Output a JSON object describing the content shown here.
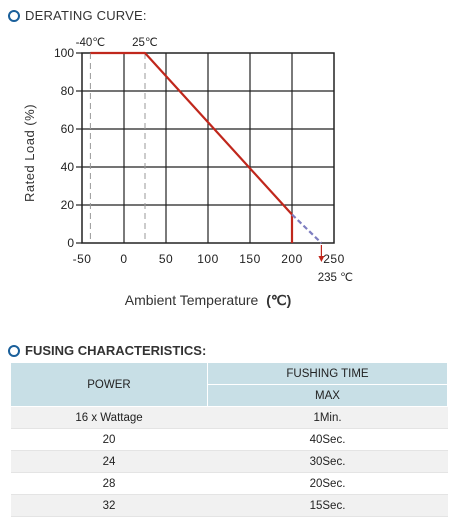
{
  "derating": {
    "heading": "DERATING CURVE:"
  },
  "chart_data": {
    "type": "line",
    "xlabel_text": "Ambient Temperature",
    "xlabel_unit": "(℃)",
    "ylabel": "Rated Load (%)",
    "xlim": [
      -50,
      250
    ],
    "ylim": [
      0,
      100
    ],
    "x_ticks": [
      -50,
      0,
      50,
      100,
      150,
      200,
      250
    ],
    "y_ticks": [
      0,
      20,
      40,
      60,
      80,
      100
    ],
    "grid": true,
    "series": [
      {
        "style": "solid",
        "color": "#c0271c",
        "points": [
          [
            -40,
            100
          ],
          [
            25,
            100
          ],
          [
            200,
            15
          ],
          [
            200,
            0
          ]
        ]
      },
      {
        "style": "dashed",
        "color": "#7e7ec0",
        "points": [
          [
            200,
            15
          ],
          [
            235,
            0
          ]
        ]
      }
    ],
    "reference_lines": [
      {
        "x": -40,
        "label": "-40℃"
      },
      {
        "x": 25,
        "label": "25℃"
      }
    ],
    "annotation": {
      "x": 235,
      "label": "235 ℃"
    }
  },
  "fusing": {
    "heading": "FUSING CHARACTERISTICS:",
    "col_power": "POWER",
    "col_time": "FUSHING TIME",
    "col_max": "MAX",
    "rows": [
      {
        "power": "16 x Wattage",
        "time": "1Min."
      },
      {
        "power": "20",
        "time": "40Sec."
      },
      {
        "power": "24",
        "time": "30Sec."
      },
      {
        "power": "28",
        "time": "20Sec."
      },
      {
        "power": "32",
        "time": "15Sec."
      }
    ]
  }
}
